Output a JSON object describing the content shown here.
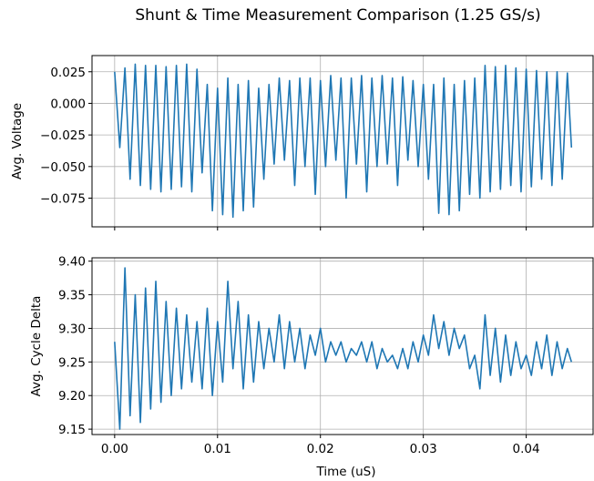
{
  "chart_data": {
    "title": "Shunt & Time Measurement Comparison (1.25 GS/s)",
    "type": "line",
    "line_color": "#1f77b4",
    "grid": true,
    "shared_x": {
      "label": "Time (uS)",
      "range": [
        -0.0022,
        0.0465
      ],
      "ticks": [
        "0.00",
        "0.01",
        "0.02",
        "0.03",
        "0.04"
      ],
      "tick_values": [
        0,
        0.01,
        0.02,
        0.03,
        0.04
      ]
    },
    "subplots": [
      {
        "ylabel": "Avg. Voltage",
        "ylim": [
          -0.0977,
          0.0378
        ],
        "y_ticks": [
          "0.025",
          "0.000",
          "−0.025",
          "−0.050",
          "−0.075"
        ],
        "y_tick_values": [
          0.025,
          0,
          -0.025,
          -0.05,
          -0.075
        ],
        "series": [
          {
            "x": [
              0,
              0.0005,
              0.001,
              0.0015,
              0.002,
              0.0025,
              0.003,
              0.0035,
              0.004,
              0.0045,
              0.005,
              0.0055,
              0.006,
              0.0065,
              0.007,
              0.0075,
              0.008,
              0.0085,
              0.009,
              0.0095,
              0.01,
              0.0105,
              0.011,
              0.0115,
              0.012,
              0.0125,
              0.013,
              0.0135,
              0.014,
              0.0145,
              0.015,
              0.0155,
              0.016,
              0.0165,
              0.017,
              0.0175,
              0.018,
              0.0185,
              0.019,
              0.0195,
              0.02,
              0.0205,
              0.021,
              0.0215,
              0.022,
              0.0225,
              0.023,
              0.0235,
              0.024,
              0.0245,
              0.025,
              0.0255,
              0.026,
              0.0265,
              0.027,
              0.0275,
              0.028,
              0.0285,
              0.029,
              0.0295,
              0.03,
              0.0305,
              0.031,
              0.0315,
              0.032,
              0.0325,
              0.033,
              0.0335,
              0.034,
              0.0345,
              0.035,
              0.0355,
              0.036,
              0.0365,
              0.037,
              0.0375,
              0.038,
              0.0385,
              0.039,
              0.0395,
              0.04,
              0.0405,
              0.041,
              0.0415,
              0.042,
              0.0425,
              0.043,
              0.0435,
              0.044,
              0.0444
            ],
            "y": [
              0.025,
              -0.035,
              0.028,
              -0.06,
              0.031,
              -0.065,
              0.03,
              -0.068,
              0.03,
              -0.07,
              0.029,
              -0.068,
              0.03,
              -0.066,
              0.031,
              -0.07,
              0.027,
              -0.055,
              0.015,
              -0.085,
              0.012,
              -0.088,
              0.02,
              -0.09,
              0.015,
              -0.085,
              0.018,
              -0.082,
              0.012,
              -0.06,
              0.015,
              -0.048,
              0.02,
              -0.045,
              0.018,
              -0.065,
              0.02,
              -0.05,
              0.02,
              -0.072,
              0.018,
              -0.05,
              0.022,
              -0.045,
              0.02,
              -0.075,
              0.02,
              -0.048,
              0.022,
              -0.07,
              0.02,
              -0.05,
              0.022,
              -0.048,
              0.02,
              -0.065,
              0.021,
              -0.045,
              0.018,
              -0.05,
              0.015,
              -0.06,
              0.015,
              -0.087,
              0.02,
              -0.088,
              0.015,
              -0.085,
              0.018,
              -0.072,
              0.02,
              -0.075,
              0.03,
              -0.07,
              0.029,
              -0.068,
              0.03,
              -0.065,
              0.028,
              -0.07,
              0.027,
              -0.066,
              0.026,
              -0.06,
              0.025,
              -0.065,
              0.025,
              -0.06,
              0.024,
              -0.035
            ]
          }
        ]
      },
      {
        "ylabel": "Avg. Cycle Delta",
        "ylim": [
          9.142,
          9.405
        ],
        "y_ticks": [
          "9.40",
          "9.35",
          "9.30",
          "9.25",
          "9.20",
          "9.15"
        ],
        "y_tick_values": [
          9.4,
          9.35,
          9.3,
          9.25,
          9.2,
          9.15
        ],
        "series": [
          {
            "x": [
              0,
              0.0005,
              0.001,
              0.0015,
              0.002,
              0.0025,
              0.003,
              0.0035,
              0.004,
              0.0045,
              0.005,
              0.0055,
              0.006,
              0.0065,
              0.007,
              0.0075,
              0.008,
              0.0085,
              0.009,
              0.0095,
              0.01,
              0.0105,
              0.011,
              0.0115,
              0.012,
              0.0125,
              0.013,
              0.0135,
              0.014,
              0.0145,
              0.015,
              0.0155,
              0.016,
              0.0165,
              0.017,
              0.0175,
              0.018,
              0.0185,
              0.019,
              0.0195,
              0.02,
              0.0205,
              0.021,
              0.0215,
              0.022,
              0.0225,
              0.023,
              0.0235,
              0.024,
              0.0245,
              0.025,
              0.0255,
              0.026,
              0.0265,
              0.027,
              0.0275,
              0.028,
              0.0285,
              0.029,
              0.0295,
              0.03,
              0.0305,
              0.031,
              0.0315,
              0.032,
              0.0325,
              0.033,
              0.0335,
              0.034,
              0.0345,
              0.035,
              0.0355,
              0.036,
              0.0365,
              0.037,
              0.0375,
              0.038,
              0.0385,
              0.039,
              0.0395,
              0.04,
              0.0405,
              0.041,
              0.0415,
              0.042,
              0.0425,
              0.043,
              0.0435,
              0.044,
              0.0444
            ],
            "y": [
              9.28,
              9.15,
              9.39,
              9.17,
              9.35,
              9.16,
              9.36,
              9.18,
              9.37,
              9.19,
              9.34,
              9.2,
              9.33,
              9.21,
              9.32,
              9.22,
              9.31,
              9.21,
              9.33,
              9.2,
              9.31,
              9.22,
              9.37,
              9.24,
              9.34,
              9.21,
              9.32,
              9.22,
              9.31,
              9.24,
              9.3,
              9.25,
              9.32,
              9.24,
              9.31,
              9.25,
              9.3,
              9.24,
              9.29,
              9.26,
              9.3,
              9.25,
              9.28,
              9.26,
              9.28,
              9.25,
              9.27,
              9.26,
              9.28,
              9.25,
              9.28,
              9.24,
              9.27,
              9.25,
              9.26,
              9.24,
              9.27,
              9.24,
              9.28,
              9.25,
              9.29,
              9.26,
              9.32,
              9.27,
              9.31,
              9.26,
              9.3,
              9.27,
              9.29,
              9.24,
              9.26,
              9.21,
              9.32,
              9.23,
              9.3,
              9.22,
              9.29,
              9.23,
              9.28,
              9.24,
              9.26,
              9.23,
              9.28,
              9.24,
              9.29,
              9.23,
              9.28,
              9.24,
              9.27,
              9.25
            ]
          }
        ]
      }
    ]
  }
}
